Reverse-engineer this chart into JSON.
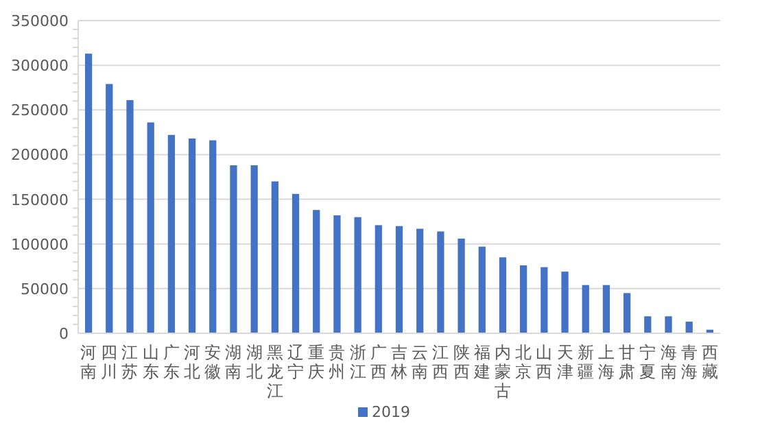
{
  "chart_data": {
    "type": "bar",
    "categories": [
      "河南",
      "四川",
      "江苏",
      "山东",
      "广东",
      "河北",
      "安徽",
      "湖南",
      "湖北",
      "黑龙江",
      "辽宁",
      "重庆",
      "贵州",
      "浙江",
      "广西",
      "吉林",
      "云南",
      "江西",
      "陕西",
      "福建",
      "内蒙古",
      "北京",
      "山西",
      "天津",
      "新疆",
      "上海",
      "甘肃",
      "宁夏",
      "海南",
      "青海",
      "西藏"
    ],
    "series": [
      {
        "name": "2019",
        "color": "#4472c4",
        "values": [
          313000,
          279000,
          261000,
          236000,
          222000,
          218000,
          216000,
          188000,
          188000,
          170000,
          156000,
          138000,
          132000,
          130000,
          121000,
          120000,
          117000,
          114000,
          106000,
          97000,
          85000,
          76000,
          74000,
          69000,
          54000,
          54000,
          45000,
          19000,
          19000,
          13000,
          4000
        ]
      }
    ],
    "ylim": [
      0,
      350000
    ],
    "yticks": [
      0,
      50000,
      100000,
      150000,
      200000,
      250000,
      300000,
      350000
    ],
    "grid": "y",
    "legend": "bottom"
  }
}
